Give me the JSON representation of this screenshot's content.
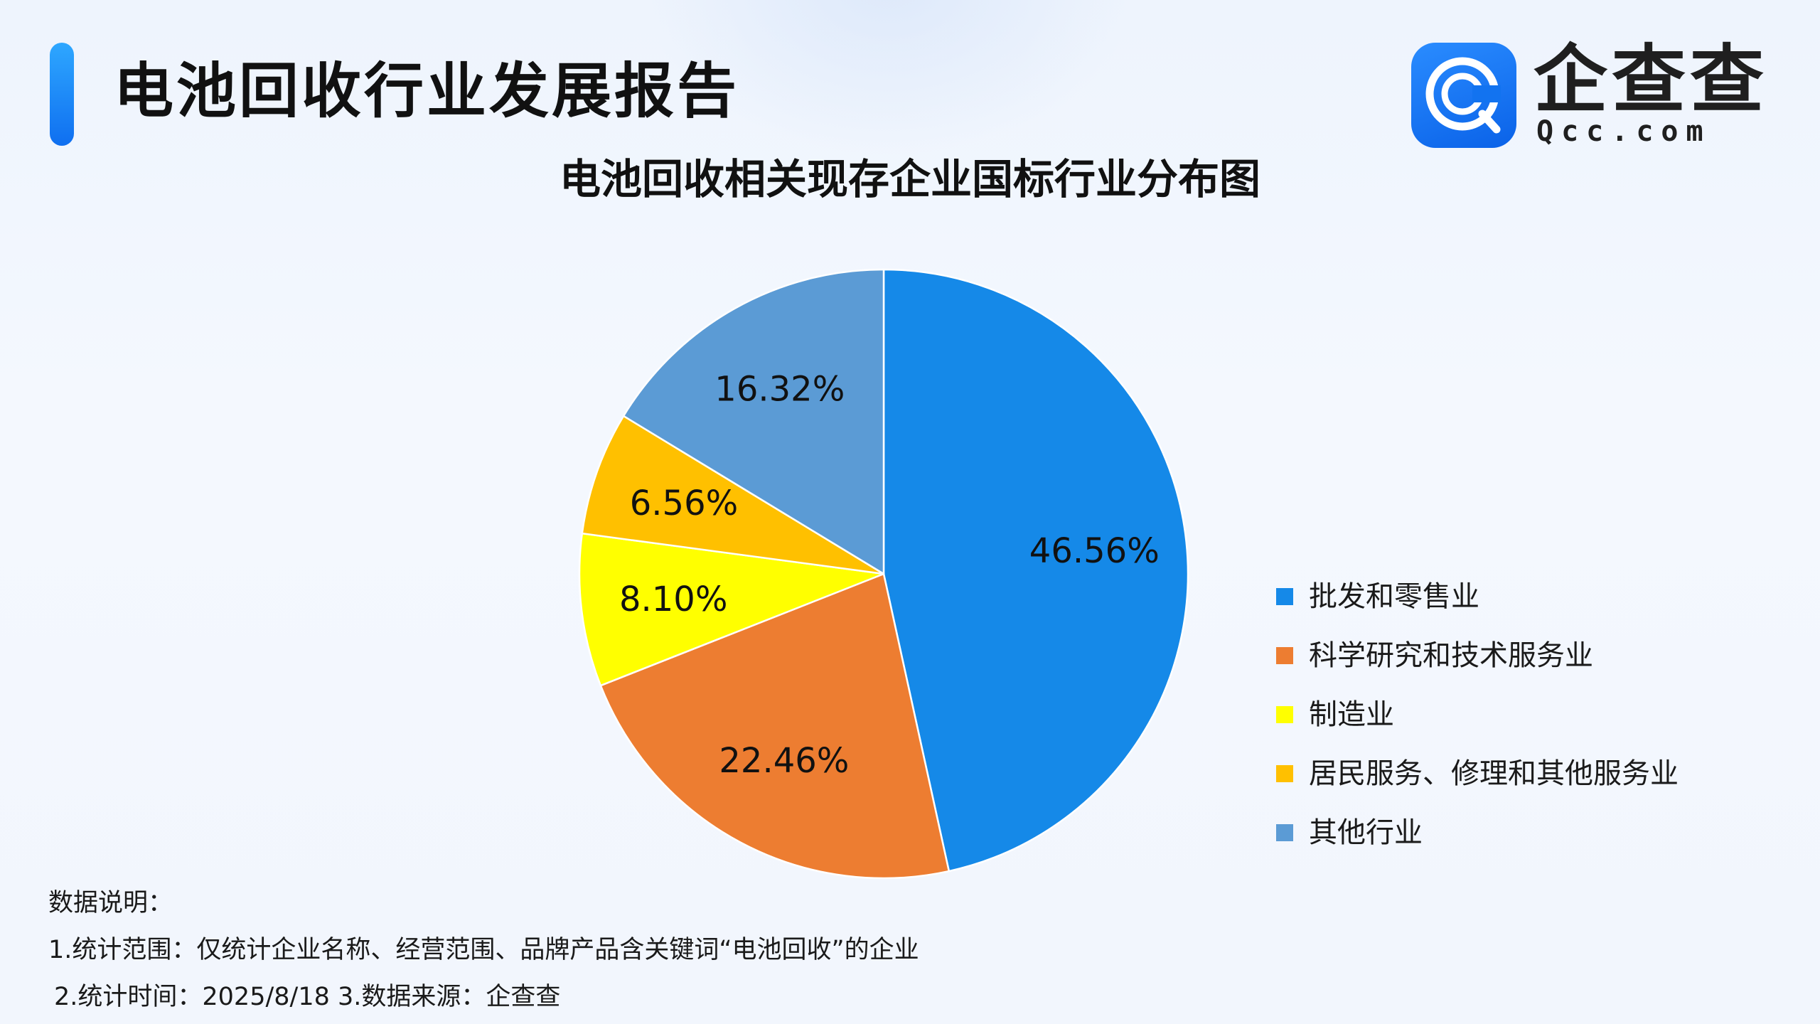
{
  "header": {
    "title": "电池回收行业发展报告"
  },
  "brand": {
    "name": "企查查",
    "domain": "Qcc.com",
    "icon": "qcc-logo-icon",
    "color": "#1273f0"
  },
  "chart_data": {
    "type": "pie",
    "title": "电池回收相关现存企业国标行业分布图",
    "categories": [
      "批发和零售业",
      "科学研究和技术服务业",
      "制造业",
      "居民服务、修理和其他服务业",
      "其他行业"
    ],
    "values": [
      46.56,
      22.46,
      8.1,
      6.56,
      16.32
    ],
    "value_labels": [
      "46.56%",
      "22.46%",
      "8.10%",
      "6.56%",
      "16.32%"
    ],
    "unit": "%",
    "colors": [
      "#1589e8",
      "#ed7d31",
      "#ffff00",
      "#ffc000",
      "#5b9bd5"
    ],
    "start_angle_deg": 0,
    "direction": "clockwise",
    "legend_position": "right"
  },
  "notes": {
    "heading": "数据说明：",
    "line1": "1.统计范围：仅统计企业名称、经营范围、品牌产品含关键词“电池回收”的企业",
    "line2": "2.统计时间：2025/8/18  3.数据来源：企查查"
  }
}
